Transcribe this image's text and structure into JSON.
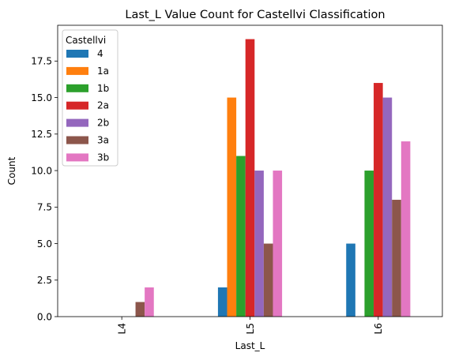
{
  "chart_data": {
    "type": "bar",
    "title": "Last_L Value Count for Castellvi Classification",
    "xlabel": "Last_L",
    "ylabel": "Count",
    "categories": [
      "L4",
      "L5",
      "L6"
    ],
    "ylim": [
      0,
      19.95
    ],
    "yticks": [
      0.0,
      2.5,
      5.0,
      7.5,
      10.0,
      12.5,
      15.0,
      17.5
    ],
    "ytick_labels": [
      "0.0",
      "2.5",
      "5.0",
      "7.5",
      "10.0",
      "12.5",
      "15.0",
      "17.5"
    ],
    "grid": false,
    "legend": {
      "title": "Castellvi",
      "placement": "top-left"
    },
    "series": [
      {
        "name": "4",
        "color": "#1f77b4",
        "values": [
          0,
          2,
          5
        ]
      },
      {
        "name": "1a",
        "color": "#ff7f0e",
        "values": [
          0,
          15,
          0
        ]
      },
      {
        "name": "1b",
        "color": "#2ca02c",
        "values": [
          0,
          11,
          10
        ]
      },
      {
        "name": "2a",
        "color": "#d62728",
        "values": [
          0,
          19,
          16
        ]
      },
      {
        "name": "2b",
        "color": "#9467bd",
        "values": [
          0,
          10,
          15
        ]
      },
      {
        "name": "3a",
        "color": "#8c564b",
        "values": [
          1,
          5,
          8
        ]
      },
      {
        "name": "3b",
        "color": "#e377c2",
        "values": [
          2,
          10,
          12
        ]
      }
    ]
  }
}
